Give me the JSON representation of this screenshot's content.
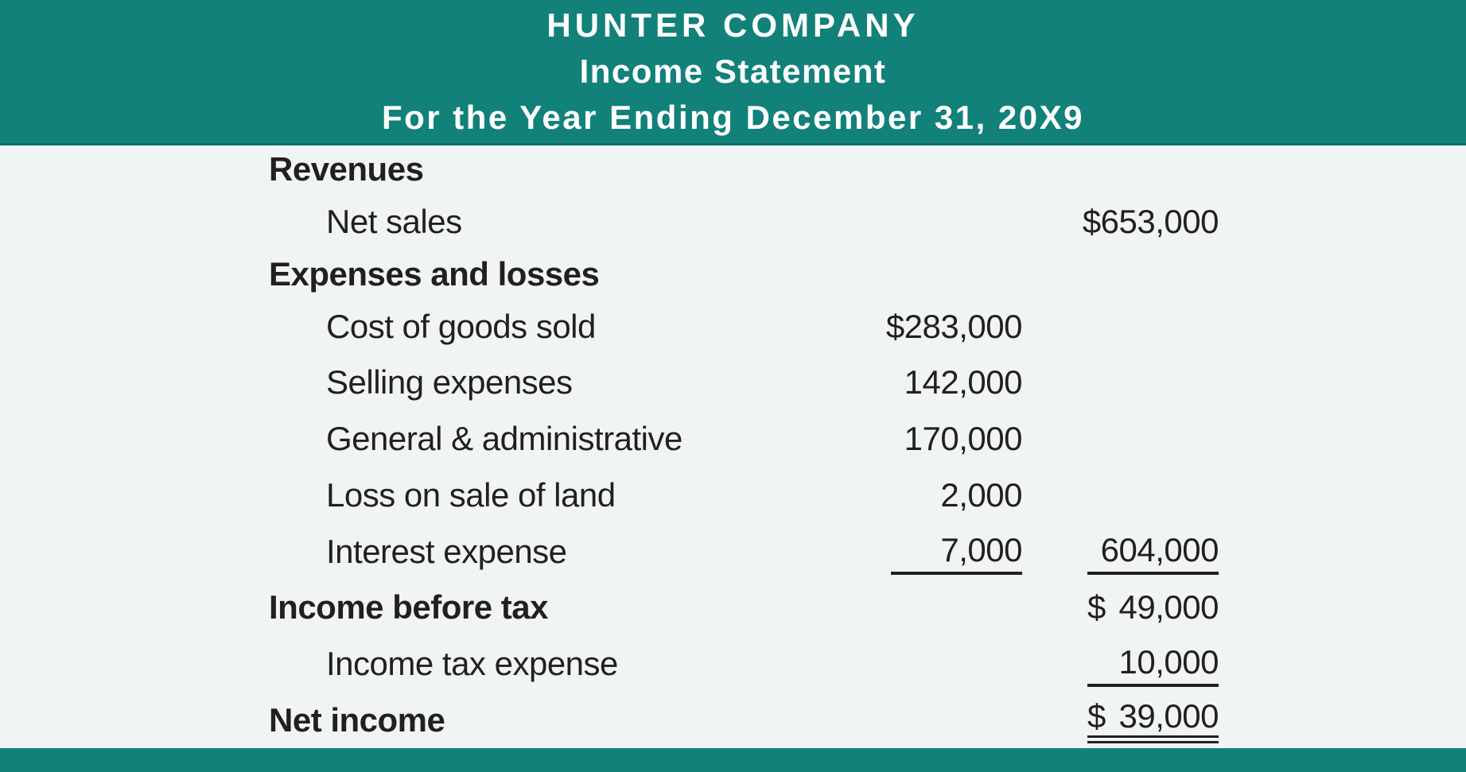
{
  "colors": {
    "teal": "#12817A",
    "teal_dark_edge": "#0E6E68",
    "background": "#F1F4F5",
    "text": "#231F20",
    "header_text": "#FFFFFF"
  },
  "header": {
    "company": "HUNTER COMPANY",
    "title": "Income Statement",
    "period": "For the Year Ending December 31, 20X9"
  },
  "statement": {
    "rows": [
      {
        "label": "Revenues",
        "style": "section"
      },
      {
        "label": "Net sales",
        "style": "item",
        "amt2": {
          "text": "$653,000"
        }
      },
      {
        "label": "Expenses and losses",
        "style": "section"
      },
      {
        "label": "Cost of goods sold",
        "style": "item",
        "amt1": {
          "text": "$283,000"
        }
      },
      {
        "label": "Selling expenses",
        "style": "item",
        "amt1": {
          "text": "142,000"
        }
      },
      {
        "label": "General & administrative",
        "style": "item",
        "amt1": {
          "text": "170,000"
        }
      },
      {
        "label": "Loss on sale of land",
        "style": "item",
        "amt1": {
          "text": "2,000"
        }
      },
      {
        "label": "Interest expense",
        "style": "item",
        "amt1": {
          "text": "7,000",
          "underline": "single"
        },
        "amt2": {
          "text": "604,000",
          "underline": "single"
        }
      },
      {
        "label": "Income before tax",
        "style": "section",
        "amt2": {
          "currency": "$",
          "text": "49,000"
        }
      },
      {
        "label": "Income tax expense",
        "style": "item",
        "amt2": {
          "text": "10,000",
          "underline": "single"
        }
      },
      {
        "label": "Net income",
        "style": "section",
        "amt2": {
          "currency": "$",
          "text": "39,000",
          "underline": "double"
        }
      }
    ]
  }
}
